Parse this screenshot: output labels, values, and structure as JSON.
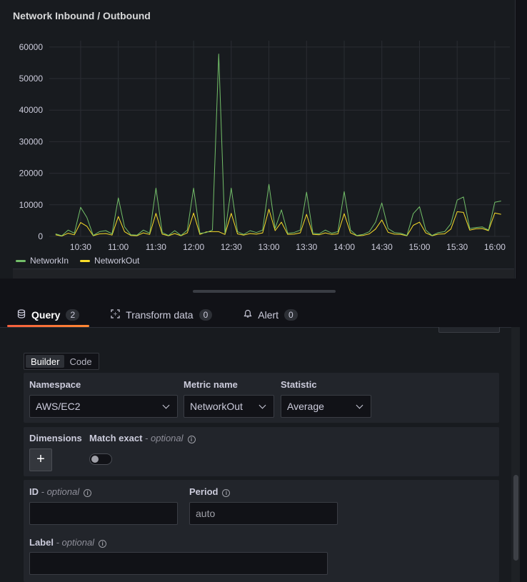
{
  "panel": {
    "title": "Network Inbound / Outbound"
  },
  "chart_data": {
    "type": "line",
    "title": "Network Inbound / Outbound",
    "xlabel": "",
    "ylabel": "",
    "ylim": [
      0,
      62000
    ],
    "yticks": [
      "60000",
      "50000",
      "40000",
      "30000",
      "20000",
      "10000",
      "0"
    ],
    "xticks": [
      "10:30",
      "11:00",
      "11:30",
      "12:00",
      "12:30",
      "13:00",
      "13:30",
      "14:00",
      "14:30",
      "15:00",
      "15:30",
      "16:00"
    ],
    "grid": true,
    "legend_position": "bottom-left",
    "x": [
      "10:10",
      "10:15",
      "10:20",
      "10:25",
      "10:30",
      "10:35",
      "10:40",
      "10:45",
      "10:50",
      "10:55",
      "11:00",
      "11:05",
      "11:10",
      "11:15",
      "11:20",
      "11:25",
      "11:30",
      "11:35",
      "11:40",
      "11:45",
      "11:50",
      "11:55",
      "12:00",
      "12:05",
      "12:10",
      "12:15",
      "12:20",
      "12:25",
      "12:30",
      "12:35",
      "12:40",
      "12:45",
      "12:50",
      "12:55",
      "13:00",
      "13:05",
      "13:10",
      "13:15",
      "13:20",
      "13:25",
      "13:30",
      "13:35",
      "13:40",
      "13:45",
      "13:50",
      "13:55",
      "14:00",
      "14:05",
      "14:10",
      "14:15",
      "14:20",
      "14:25",
      "14:30",
      "14:35",
      "14:40",
      "14:45",
      "14:50",
      "14:55",
      "15:00",
      "15:05",
      "15:10",
      "15:15",
      "15:20",
      "15:25",
      "15:30",
      "15:35",
      "15:40",
      "15:45",
      "15:50",
      "15:55",
      "16:00",
      "16:05"
    ],
    "series": [
      {
        "name": "NetworkIn",
        "color": "#73bf69",
        "values": [
          800,
          200,
          2000,
          1000,
          9200,
          6000,
          300,
          1500,
          1800,
          800,
          12200,
          3000,
          500,
          400,
          2000,
          1000,
          15300,
          1200,
          300,
          1800,
          300,
          2000,
          15300,
          1000,
          1200,
          2000,
          57800,
          1000,
          15300,
          1500,
          600,
          1800,
          1200,
          2000,
          16500,
          2500,
          8400,
          1000,
          1200,
          2000,
          14000,
          1000,
          800,
          2000,
          1000,
          1500,
          14200,
          2000,
          300,
          600,
          1500,
          4500,
          10600,
          2500,
          1200,
          1000,
          300,
          7200,
          9400,
          2000,
          300,
          1200,
          1500,
          4000,
          11500,
          12500,
          2500,
          2800,
          3000,
          2000,
          10800,
          11200
        ]
      },
      {
        "name": "NetworkOut",
        "color": "#fade2a",
        "values": [
          500,
          100,
          1000,
          500,
          4400,
          3200,
          200,
          800,
          900,
          400,
          6300,
          1500,
          300,
          200,
          1100,
          600,
          7300,
          700,
          200,
          900,
          200,
          1100,
          7400,
          600,
          1400,
          1500,
          1500,
          600,
          7300,
          800,
          400,
          900,
          700,
          1100,
          8600,
          1800,
          4500,
          600,
          700,
          1100,
          7000,
          600,
          500,
          1100,
          600,
          800,
          7200,
          1100,
          200,
          300,
          800,
          2300,
          5200,
          1300,
          700,
          600,
          200,
          3500,
          4500,
          1100,
          200,
          700,
          800,
          2300,
          7800,
          7600,
          2000,
          2400,
          2500,
          1800,
          7400,
          7000
        ]
      }
    ]
  },
  "legend": {
    "in": "NetworkIn",
    "out": "NetworkOut"
  },
  "tabs": [
    {
      "label": "Query",
      "count": "2"
    },
    {
      "label": "Transform data",
      "count": "0"
    },
    {
      "label": "Alert",
      "count": "0"
    }
  ],
  "editor": {
    "mode_builder": "Builder",
    "mode_code": "Code",
    "namespace_label": "Namespace",
    "namespace_value": "AWS/EC2",
    "metric_label": "Metric name",
    "metric_value": "NetworkOut",
    "statistic_label": "Statistic",
    "statistic_value": "Average",
    "dimensions_label": "Dimensions",
    "match_exact_label": "Match exact",
    "optional": "- optional",
    "id_label": "ID",
    "id_value": "",
    "period_label": "Period",
    "period_placeholder": "auto",
    "label_label": "Label",
    "label_value": "",
    "plus_symbol": "+"
  }
}
